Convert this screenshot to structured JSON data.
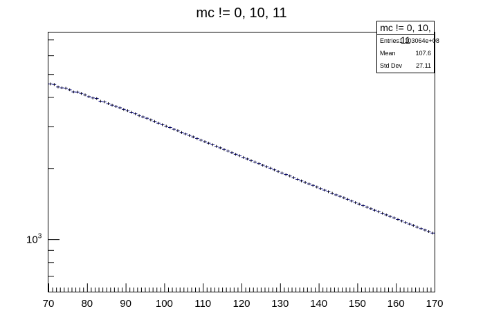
{
  "chart_data": {
    "type": "histogram",
    "title": "mc != 0, 10, 11",
    "xlim": [
      70,
      170
    ],
    "ylim": [
      600,
      7500
    ],
    "log_y": true,
    "x_ticks": [
      70,
      80,
      90,
      100,
      110,
      120,
      130,
      140,
      150,
      160,
      170
    ],
    "y_labeled_tick": {
      "value": 1000,
      "base": "10",
      "exp": "3"
    },
    "grid": false,
    "bin_width": 1,
    "x": [
      70.5,
      71.5,
      72.5,
      73.5,
      74.5,
      75.5,
      76.5,
      77.5,
      78.5,
      79.5,
      80.5,
      81.5,
      82.5,
      83.5,
      84.5,
      85.5,
      86.5,
      87.5,
      88.5,
      89.5,
      90.5,
      91.5,
      92.5,
      93.5,
      94.5,
      95.5,
      96.5,
      97.5,
      98.5,
      99.5,
      100.5,
      101.5,
      102.5,
      103.5,
      104.5,
      105.5,
      106.5,
      107.5,
      108.5,
      109.5,
      110.5,
      111.5,
      112.5,
      113.5,
      114.5,
      115.5,
      116.5,
      117.5,
      118.5,
      119.5,
      120.5,
      121.5,
      122.5,
      123.5,
      124.5,
      125.5,
      126.5,
      127.5,
      128.5,
      129.5,
      130.5,
      131.5,
      132.5,
      133.5,
      134.5,
      135.5,
      136.5,
      137.5,
      138.5,
      139.5,
      140.5,
      141.5,
      142.5,
      143.5,
      144.5,
      145.5,
      146.5,
      147.5,
      148.5,
      149.5,
      150.5,
      151.5,
      152.5,
      153.5,
      154.5,
      155.5,
      156.5,
      157.5,
      158.5,
      159.5,
      160.5,
      161.5,
      162.5,
      163.5,
      164.5,
      165.5,
      166.5,
      167.5,
      168.5,
      169.5
    ],
    "values": [
      4542,
      4517,
      4411,
      4373,
      4357,
      4290,
      4202,
      4196,
      4139,
      4083,
      4011,
      3962,
      3939,
      3839,
      3815,
      3749,
      3694,
      3648,
      3600,
      3543,
      3500,
      3445,
      3396,
      3335,
      3295,
      3250,
      3200,
      3152,
      3099,
      3053,
      3010,
      2971,
      2920,
      2880,
      2829,
      2790,
      2749,
      2711,
      2668,
      2627,
      2587,
      2550,
      2512,
      2473,
      2437,
      2398,
      2363,
      2325,
      2288,
      2257,
      2219,
      2187,
      2152,
      2122,
      2090,
      2058,
      2028,
      1999,
      1967,
      1935,
      1907,
      1878,
      1853,
      1823,
      1793,
      1766,
      1740,
      1715,
      1690,
      1664,
      1638,
      1614,
      1589,
      1566,
      1541,
      1519,
      1498,
      1476,
      1452,
      1429,
      1409,
      1388,
      1367,
      1347,
      1327,
      1308,
      1288,
      1268,
      1249,
      1232,
      1213,
      1195,
      1177,
      1160,
      1144,
      1126,
      1109,
      1094,
      1078,
      1062
    ],
    "line_color": "#000080",
    "stats": {
      "title": "mc != 0, 10, 11",
      "rows": [
        {
          "label": "Entries",
          "value": "1.103064e+08"
        },
        {
          "label": "Mean",
          "value": "107.6"
        },
        {
          "label": "Std Dev",
          "value": "27.11"
        }
      ]
    }
  }
}
